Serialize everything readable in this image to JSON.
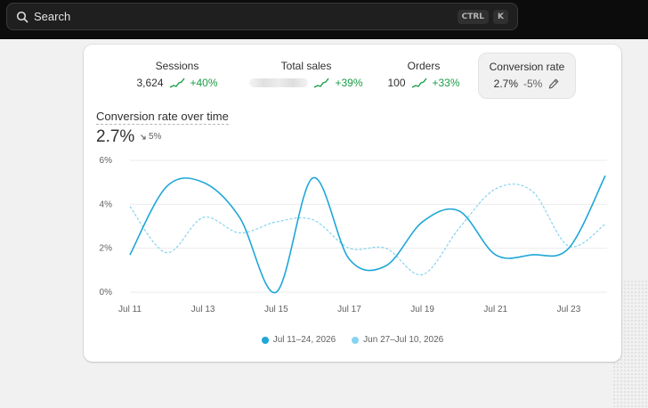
{
  "search": {
    "label": "Search",
    "shortcut_ctrl": "CTRL",
    "shortcut_key": "K"
  },
  "metrics": {
    "sessions": {
      "title": "Sessions",
      "value": "3,624",
      "change": "+40%"
    },
    "total_sales": {
      "title": "Total sales",
      "value": "",
      "change": "+39%"
    },
    "orders": {
      "title": "Orders",
      "value": "100",
      "change": "+33%"
    },
    "conversion_rate": {
      "title": "Conversion rate",
      "value": "2.7%",
      "change": "-5%"
    }
  },
  "chart_header": {
    "title": "Conversion rate over time",
    "value": "2.7%",
    "change": "5%"
  },
  "colors": {
    "primary": "#1ea7d8",
    "secondary": "#87d3ef",
    "positive": "#1a9c46"
  },
  "chart_data": {
    "type": "line",
    "x": [
      "Jul 11",
      "Jul 12",
      "Jul 13",
      "Jul 14",
      "Jul 15",
      "Jul 16",
      "Jul 17",
      "Jul 18",
      "Jul 19",
      "Jul 20",
      "Jul 21",
      "Jul 22",
      "Jul 23",
      "Jul 24"
    ],
    "x_tick_labels": [
      "Jul 11",
      "Jul 13",
      "Jul 15",
      "Jul 17",
      "Jul 19",
      "Jul 21",
      "Jul 23"
    ],
    "y_tick_labels": [
      "0%",
      "2%",
      "4%",
      "6%"
    ],
    "ylim": [
      0,
      6
    ],
    "grid": true,
    "legend_position": "bottom",
    "series": [
      {
        "name": "Jul 11–24, 2026",
        "style": "solid",
        "values": [
          1.7,
          4.8,
          5.0,
          3.4,
          0.0,
          5.2,
          1.5,
          1.2,
          3.2,
          3.7,
          1.7,
          1.7,
          2.0,
          5.3
        ]
      },
      {
        "name": "Jun 27–Jul 10, 2026",
        "style": "dashed",
        "values": [
          3.9,
          1.8,
          3.4,
          2.7,
          3.2,
          3.3,
          2.0,
          2.0,
          0.8,
          2.9,
          4.7,
          4.6,
          2.1,
          3.1
        ]
      }
    ]
  }
}
